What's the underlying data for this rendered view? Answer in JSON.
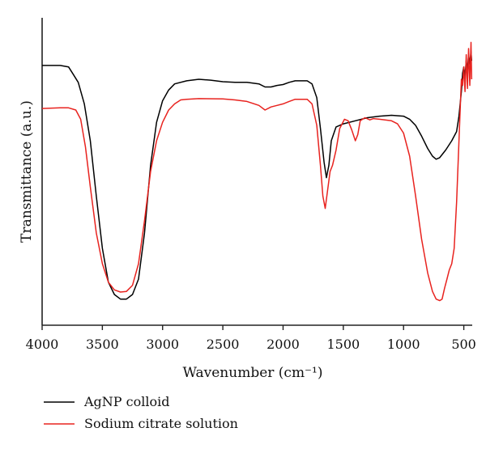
{
  "chart_data": {
    "type": "line",
    "xlabel": "Wavenumber (cm⁻¹)",
    "ylabel": "Transmittance (a.u.)",
    "xlim": [
      4000,
      430
    ],
    "ylim": [
      0,
      1
    ],
    "x_reversed": true,
    "x_ticks": [
      4000,
      3500,
      3000,
      2500,
      2000,
      1500,
      1000,
      500
    ],
    "y_ticks_shown": false,
    "grid": false,
    "legend_position": "bottom-left",
    "series": [
      {
        "name": "AgNP colloid",
        "color": "#000000",
        "points": [
          [
            4000,
            0.845
          ],
          [
            3850,
            0.845
          ],
          [
            3780,
            0.84
          ],
          [
            3740,
            0.815
          ],
          [
            3700,
            0.79
          ],
          [
            3650,
            0.72
          ],
          [
            3600,
            0.6
          ],
          [
            3550,
            0.42
          ],
          [
            3500,
            0.25
          ],
          [
            3450,
            0.14
          ],
          [
            3400,
            0.1
          ],
          [
            3350,
            0.085
          ],
          [
            3300,
            0.085
          ],
          [
            3250,
            0.1
          ],
          [
            3200,
            0.15
          ],
          [
            3150,
            0.3
          ],
          [
            3100,
            0.52
          ],
          [
            3050,
            0.66
          ],
          [
            3000,
            0.73
          ],
          [
            2950,
            0.765
          ],
          [
            2900,
            0.785
          ],
          [
            2800,
            0.795
          ],
          [
            2700,
            0.8
          ],
          [
            2600,
            0.797
          ],
          [
            2500,
            0.792
          ],
          [
            2400,
            0.79
          ],
          [
            2300,
            0.79
          ],
          [
            2200,
            0.785
          ],
          [
            2150,
            0.775
          ],
          [
            2100,
            0.775
          ],
          [
            2050,
            0.78
          ],
          [
            2000,
            0.783
          ],
          [
            1950,
            0.79
          ],
          [
            1900,
            0.795
          ],
          [
            1800,
            0.795
          ],
          [
            1760,
            0.785
          ],
          [
            1720,
            0.74
          ],
          [
            1690,
            0.64
          ],
          [
            1660,
            0.53
          ],
          [
            1640,
            0.48
          ],
          [
            1620,
            0.52
          ],
          [
            1600,
            0.6
          ],
          [
            1560,
            0.645
          ],
          [
            1500,
            0.655
          ],
          [
            1400,
            0.665
          ],
          [
            1300,
            0.675
          ],
          [
            1200,
            0.68
          ],
          [
            1100,
            0.683
          ],
          [
            1000,
            0.68
          ],
          [
            950,
            0.67
          ],
          [
            900,
            0.65
          ],
          [
            850,
            0.615
          ],
          [
            800,
            0.575
          ],
          [
            760,
            0.55
          ],
          [
            730,
            0.54
          ],
          [
            700,
            0.545
          ],
          [
            650,
            0.57
          ],
          [
            600,
            0.6
          ],
          [
            560,
            0.63
          ],
          [
            540,
            0.68
          ],
          [
            520,
            0.76
          ],
          [
            510,
            0.82
          ],
          [
            500,
            0.84
          ],
          [
            490,
            0.81
          ],
          [
            480,
            0.86
          ],
          [
            470,
            0.83
          ],
          [
            460,
            0.88
          ],
          [
            450,
            0.85
          ],
          [
            440,
            0.89
          ],
          [
            435,
            0.86
          ]
        ]
      },
      {
        "name": "Sodium citrate solution",
        "color": "#e8231f",
        "points": [
          [
            4000,
            0.705
          ],
          [
            3850,
            0.707
          ],
          [
            3780,
            0.707
          ],
          [
            3720,
            0.7
          ],
          [
            3680,
            0.67
          ],
          [
            3640,
            0.58
          ],
          [
            3600,
            0.45
          ],
          [
            3550,
            0.3
          ],
          [
            3500,
            0.2
          ],
          [
            3450,
            0.14
          ],
          [
            3400,
            0.115
          ],
          [
            3350,
            0.108
          ],
          [
            3300,
            0.11
          ],
          [
            3250,
            0.13
          ],
          [
            3200,
            0.2
          ],
          [
            3150,
            0.34
          ],
          [
            3100,
            0.5
          ],
          [
            3050,
            0.6
          ],
          [
            3000,
            0.66
          ],
          [
            2950,
            0.7
          ],
          [
            2900,
            0.72
          ],
          [
            2850,
            0.733
          ],
          [
            2800,
            0.735
          ],
          [
            2700,
            0.737
          ],
          [
            2500,
            0.736
          ],
          [
            2400,
            0.733
          ],
          [
            2300,
            0.728
          ],
          [
            2200,
            0.715
          ],
          [
            2150,
            0.7
          ],
          [
            2100,
            0.71
          ],
          [
            2050,
            0.715
          ],
          [
            2000,
            0.72
          ],
          [
            1950,
            0.728
          ],
          [
            1900,
            0.735
          ],
          [
            1800,
            0.735
          ],
          [
            1760,
            0.72
          ],
          [
            1720,
            0.65
          ],
          [
            1690,
            0.52
          ],
          [
            1670,
            0.42
          ],
          [
            1650,
            0.38
          ],
          [
            1630,
            0.44
          ],
          [
            1610,
            0.5
          ],
          [
            1590,
            0.52
          ],
          [
            1560,
            0.57
          ],
          [
            1530,
            0.64
          ],
          [
            1490,
            0.67
          ],
          [
            1460,
            0.665
          ],
          [
            1430,
            0.635
          ],
          [
            1400,
            0.6
          ],
          [
            1380,
            0.62
          ],
          [
            1360,
            0.665
          ],
          [
            1320,
            0.675
          ],
          [
            1280,
            0.668
          ],
          [
            1250,
            0.672
          ],
          [
            1200,
            0.67
          ],
          [
            1100,
            0.665
          ],
          [
            1050,
            0.655
          ],
          [
            1000,
            0.625
          ],
          [
            950,
            0.55
          ],
          [
            900,
            0.42
          ],
          [
            850,
            0.28
          ],
          [
            800,
            0.17
          ],
          [
            760,
            0.11
          ],
          [
            730,
            0.085
          ],
          [
            700,
            0.08
          ],
          [
            680,
            0.085
          ],
          [
            660,
            0.12
          ],
          [
            640,
            0.15
          ],
          [
            620,
            0.18
          ],
          [
            600,
            0.2
          ],
          [
            580,
            0.25
          ],
          [
            560,
            0.4
          ],
          [
            545,
            0.55
          ],
          [
            530,
            0.7
          ],
          [
            520,
            0.8
          ],
          [
            510,
            0.78
          ],
          [
            500,
            0.84
          ],
          [
            490,
            0.76
          ],
          [
            480,
            0.88
          ],
          [
            470,
            0.77
          ],
          [
            460,
            0.9
          ],
          [
            450,
            0.78
          ],
          [
            440,
            0.92
          ],
          [
            435,
            0.8
          ]
        ]
      }
    ]
  }
}
